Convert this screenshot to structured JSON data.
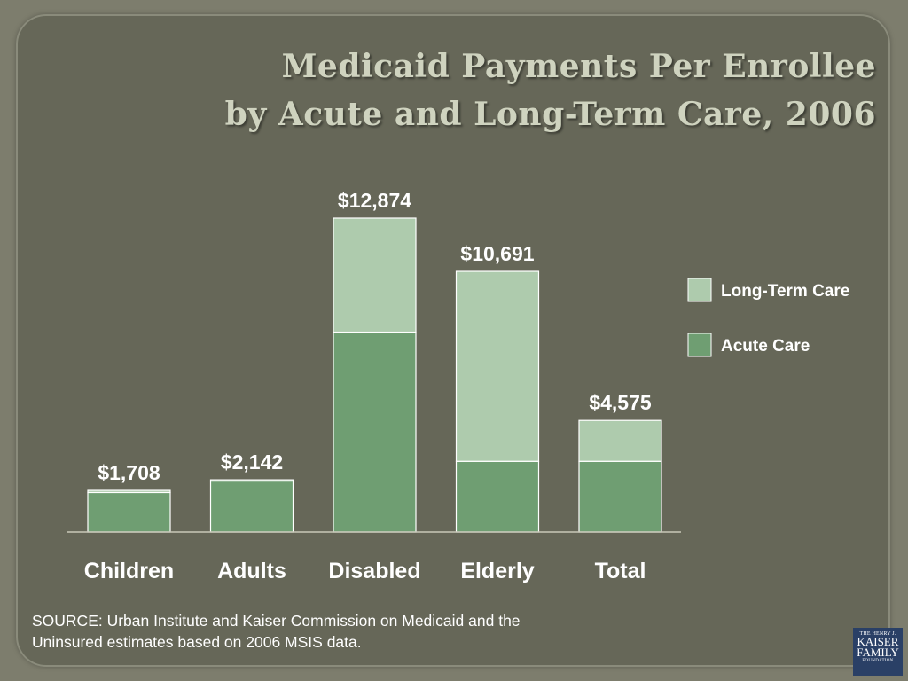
{
  "title": {
    "line1": "Medicaid Payments Per Enrollee",
    "line2": "by Acute and Long-Term Care, 2006"
  },
  "chart_data": {
    "type": "bar",
    "stacked": true,
    "categories": [
      "Children",
      "Adults",
      "Disabled",
      "Elderly",
      "Total"
    ],
    "series": [
      {
        "name": "Acute Care",
        "color": "#6f9e72",
        "values": [
          1620,
          2090,
          8200,
          2900,
          2900
        ]
      },
      {
        "name": "Long-Term Care",
        "color": "#aecbad",
        "values": [
          88,
          52,
          4674,
          7791,
          1675
        ]
      }
    ],
    "totals": [
      1708,
      2142,
      12874,
      10691,
      4575
    ],
    "total_labels": [
      "$1,708",
      "$2,142",
      "$12,874",
      "$10,691",
      "$4,575"
    ],
    "ylim": [
      0,
      15000
    ],
    "legend": "right",
    "legend_order": [
      "Long-Term Care",
      "Acute Care"
    ],
    "grid": false
  },
  "source": {
    "line1": "SOURCE: Urban Institute and Kaiser Commission on Medicaid and the",
    "line2": "Uninsured estimates based on 2006 MSIS data."
  },
  "logo": {
    "line1": "THE HENRY J.",
    "line2": "KAISER",
    "line3": "FAMILY",
    "line4": "FOUNDATION"
  }
}
